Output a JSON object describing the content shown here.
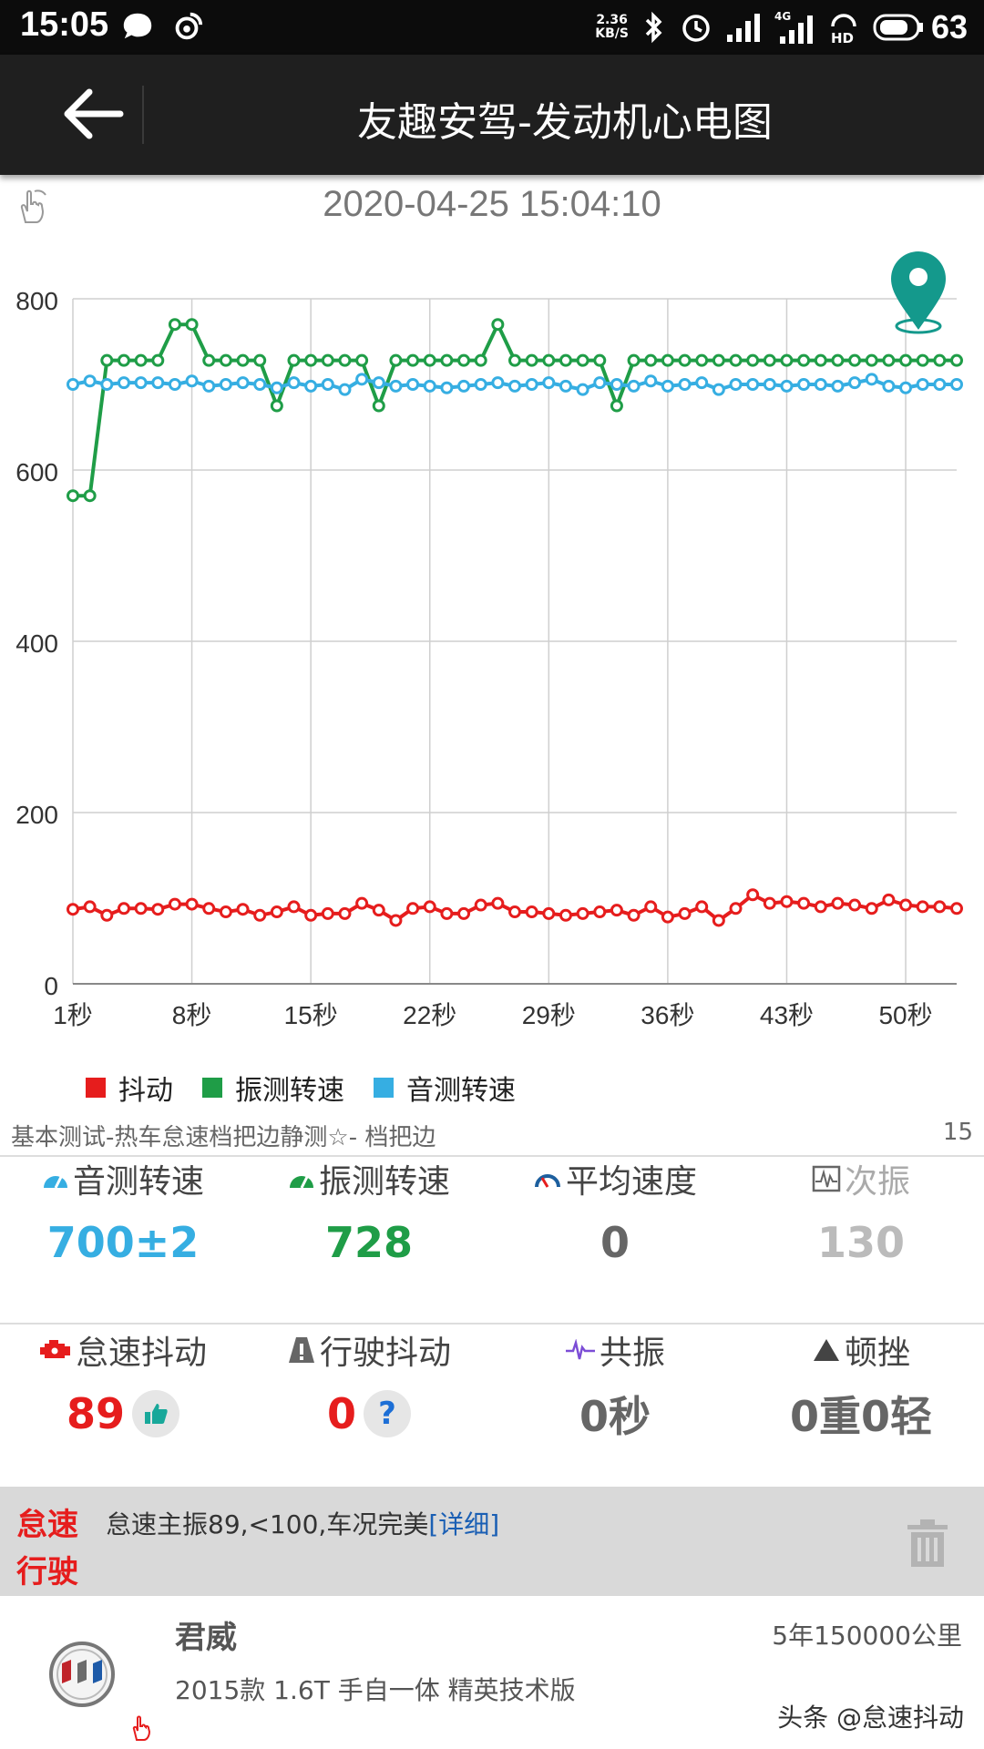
{
  "status_bar": {
    "time": "15:05",
    "net_speed_value": "2.36",
    "net_speed_unit": "KB/S",
    "battery": "63",
    "icons": [
      "message-icon",
      "weibo-icon",
      "bluetooth-icon",
      "alarm-icon",
      "signal-icon",
      "signal-4g-icon",
      "hd-call-icon",
      "battery-icon"
    ]
  },
  "app_bar": {
    "title": "友趣安驾-发动机心电图"
  },
  "chart_header": {
    "datetime": "2020-04-25 15:04:10"
  },
  "chart_data": {
    "type": "line",
    "title": "",
    "xlabel": "",
    "ylabel": "",
    "ylim": [
      0,
      800
    ],
    "y_ticks": [
      0,
      200,
      400,
      600,
      800
    ],
    "x_tick_labels": [
      "1秒",
      "8秒",
      "15秒",
      "22秒",
      "29秒",
      "36秒",
      "43秒",
      "50秒"
    ],
    "x_tick_positions": [
      1,
      8,
      15,
      22,
      29,
      36,
      43,
      50
    ],
    "xlim": [
      1,
      53
    ],
    "x": [
      1,
      2,
      3,
      4,
      5,
      6,
      7,
      8,
      9,
      10,
      11,
      12,
      13,
      14,
      15,
      16,
      17,
      18,
      19,
      20,
      21,
      22,
      23,
      24,
      25,
      26,
      27,
      28,
      29,
      30,
      31,
      32,
      33,
      34,
      35,
      36,
      37,
      38,
      39,
      40,
      41,
      42,
      43,
      44,
      45,
      46,
      47,
      48,
      49,
      50,
      51,
      52,
      53
    ],
    "grid": true,
    "legend_position": "bottom-left",
    "series": [
      {
        "name": "抖动",
        "color": "#e61d1d",
        "values": [
          87,
          90,
          80,
          88,
          88,
          87,
          93,
          93,
          88,
          84,
          87,
          80,
          84,
          90,
          80,
          82,
          82,
          94,
          86,
          74,
          88,
          90,
          82,
          82,
          92,
          94,
          84,
          84,
          82,
          80,
          82,
          84,
          86,
          80,
          90,
          78,
          82,
          90,
          74,
          88,
          104,
          94,
          96,
          94,
          90,
          94,
          92,
          88,
          98,
          92,
          90,
          90,
          88
        ]
      },
      {
        "name": "振测转速",
        "color": "#1f9d47",
        "values": [
          570,
          570,
          728,
          728,
          728,
          728,
          770,
          770,
          728,
          728,
          728,
          728,
          675,
          728,
          728,
          728,
          728,
          728,
          675,
          728,
          728,
          728,
          728,
          728,
          728,
          770,
          728,
          728,
          728,
          728,
          728,
          728,
          675,
          728,
          728,
          728,
          728,
          728,
          728,
          728,
          728,
          728,
          728,
          728,
          728,
          728,
          728,
          728,
          728,
          728,
          728,
          728,
          728
        ]
      },
      {
        "name": "音测转速",
        "color": "#36aee2",
        "values": [
          700,
          704,
          700,
          702,
          702,
          702,
          700,
          704,
          698,
          700,
          702,
          700,
          696,
          702,
          698,
          700,
          694,
          706,
          702,
          698,
          700,
          698,
          696,
          698,
          700,
          702,
          698,
          700,
          702,
          698,
          694,
          702,
          700,
          698,
          704,
          698,
          700,
          702,
          694,
          700,
          700,
          700,
          698,
          700,
          700,
          698,
          702,
          706,
          698,
          696,
          700,
          700,
          700
        ]
      }
    ]
  },
  "legend": [
    {
      "label": "抖动",
      "color": "#e61d1d"
    },
    {
      "label": "振测转速",
      "color": "#1f9d47"
    },
    {
      "label": "音测转速",
      "color": "#36aee2"
    }
  ],
  "test_info": {
    "name": "基本测试-热车怠速档把边静测☆- 档把边",
    "count": "15"
  },
  "stats_row1": [
    {
      "label": "音测转速",
      "value": "700±2",
      "color": "#36aee2",
      "icon": "gauge-icon"
    },
    {
      "label": "振测转速",
      "value": "728",
      "color": "#1f9d47",
      "icon": "gauge-icon"
    },
    {
      "label": "平均速度",
      "value": "0",
      "color": "#666666",
      "icon": "speedometer-icon"
    },
    {
      "label": "次振",
      "value": "130",
      "color": "#bbbbbb",
      "icon": "waveform-icon"
    }
  ],
  "stats_row2": [
    {
      "label": "怠速抖动",
      "value": "89",
      "color": "#e61d1d",
      "icon": "engine-icon",
      "badge_icon": "thumbs-up-icon"
    },
    {
      "label": "行驶抖动",
      "value": "0",
      "color": "#e61d1d",
      "icon": "warning-icon",
      "badge": "?"
    },
    {
      "label": "共振",
      "value": "0秒",
      "color": "#666666",
      "icon": "pulse-icon"
    },
    {
      "label": "顿挫",
      "value": "0重0轻",
      "color": "#666666",
      "icon": "triangle-icon"
    }
  ],
  "verdict": {
    "tag_idle": "怠速",
    "tag_drive": "行驶",
    "text": "怠速主振89,<100,车况完美",
    "link": "[详细]"
  },
  "car": {
    "name": "君威",
    "model": "2015款 1.6T 手自一体 精英技术版",
    "mileage": "5年150000公里",
    "logo_icon": "buick-logo-icon"
  },
  "watermark": "头条 @怠速抖动"
}
